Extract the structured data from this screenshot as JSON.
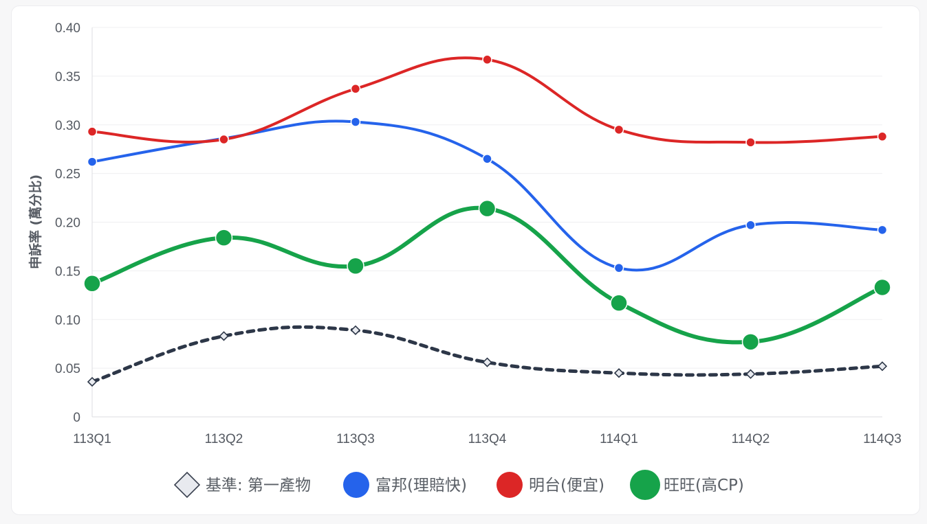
{
  "chart_data": {
    "type": "line",
    "categories": [
      "113Q1",
      "113Q2",
      "113Q3",
      "113Q4",
      "114Q1",
      "114Q2",
      "114Q3"
    ],
    "ylabel": "申訴率 (萬分比)",
    "ylim": [
      0,
      0.4
    ],
    "yticks": [
      0,
      0.05,
      0.1,
      0.15,
      0.2,
      0.25,
      0.3,
      0.35,
      0.4
    ],
    "ytick_labels": [
      "0",
      "0.05",
      "0.10",
      "0.15",
      "0.20",
      "0.25",
      "0.30",
      "0.35",
      "0.40"
    ],
    "grid": true,
    "legend_position": "bottom",
    "series": [
      {
        "name": "基準: 第一產物",
        "color": "#2d3748",
        "style": "dashed",
        "marker": "diamond",
        "values": [
          0.036,
          0.083,
          0.089,
          0.056,
          0.045,
          0.044,
          0.052
        ]
      },
      {
        "name": "富邦(理賠快)",
        "color": "#2563eb",
        "style": "solid",
        "marker": "circle",
        "values": [
          0.262,
          0.286,
          0.303,
          0.265,
          0.153,
          0.197,
          0.192
        ]
      },
      {
        "name": "明台(便宜)",
        "color": "#dc2626",
        "style": "solid",
        "marker": "circle",
        "values": [
          0.293,
          0.285,
          0.337,
          0.367,
          0.295,
          0.282,
          0.288
        ]
      },
      {
        "name": "旺旺(高CP)",
        "color": "#16a34a",
        "style": "solid",
        "marker": "circle-large",
        "values": [
          0.137,
          0.184,
          0.155,
          0.214,
          0.117,
          0.077,
          0.133
        ]
      }
    ]
  }
}
